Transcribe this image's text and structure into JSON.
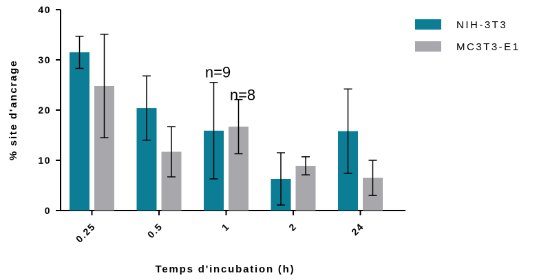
{
  "chart_data": {
    "type": "bar",
    "categories": [
      "0.25",
      "0.5",
      "1",
      "2",
      "24"
    ],
    "series": [
      {
        "name": "NIH-3T3",
        "color": "#0b7d94",
        "values": [
          31.5,
          20.4,
          15.9,
          6.3,
          15.8
        ],
        "error": [
          3.2,
          6.4,
          9.6,
          5.2,
          8.4
        ]
      },
      {
        "name": "MC3T3-E1",
        "color": "#a8a7ab",
        "values": [
          24.8,
          11.7,
          16.7,
          8.9,
          6.5
        ],
        "error": [
          10.3,
          5.0,
          5.4,
          1.8,
          3.5
        ]
      }
    ],
    "xlabel": "Temps d'incubation (h)",
    "ylabel": "% site d'ancrage",
    "ylim": [
      0,
      40
    ],
    "yticks": [
      "0",
      "10",
      "20",
      "30",
      "40"
    ],
    "grid": false,
    "legend_position": "top-right",
    "annotations": [
      {
        "text": "n=9",
        "category": "1",
        "series": "NIH-3T3",
        "y": 26.5
      },
      {
        "text": "n=8",
        "category": "1",
        "series": "MC3T3-E1",
        "y": 22.0
      }
    ]
  }
}
